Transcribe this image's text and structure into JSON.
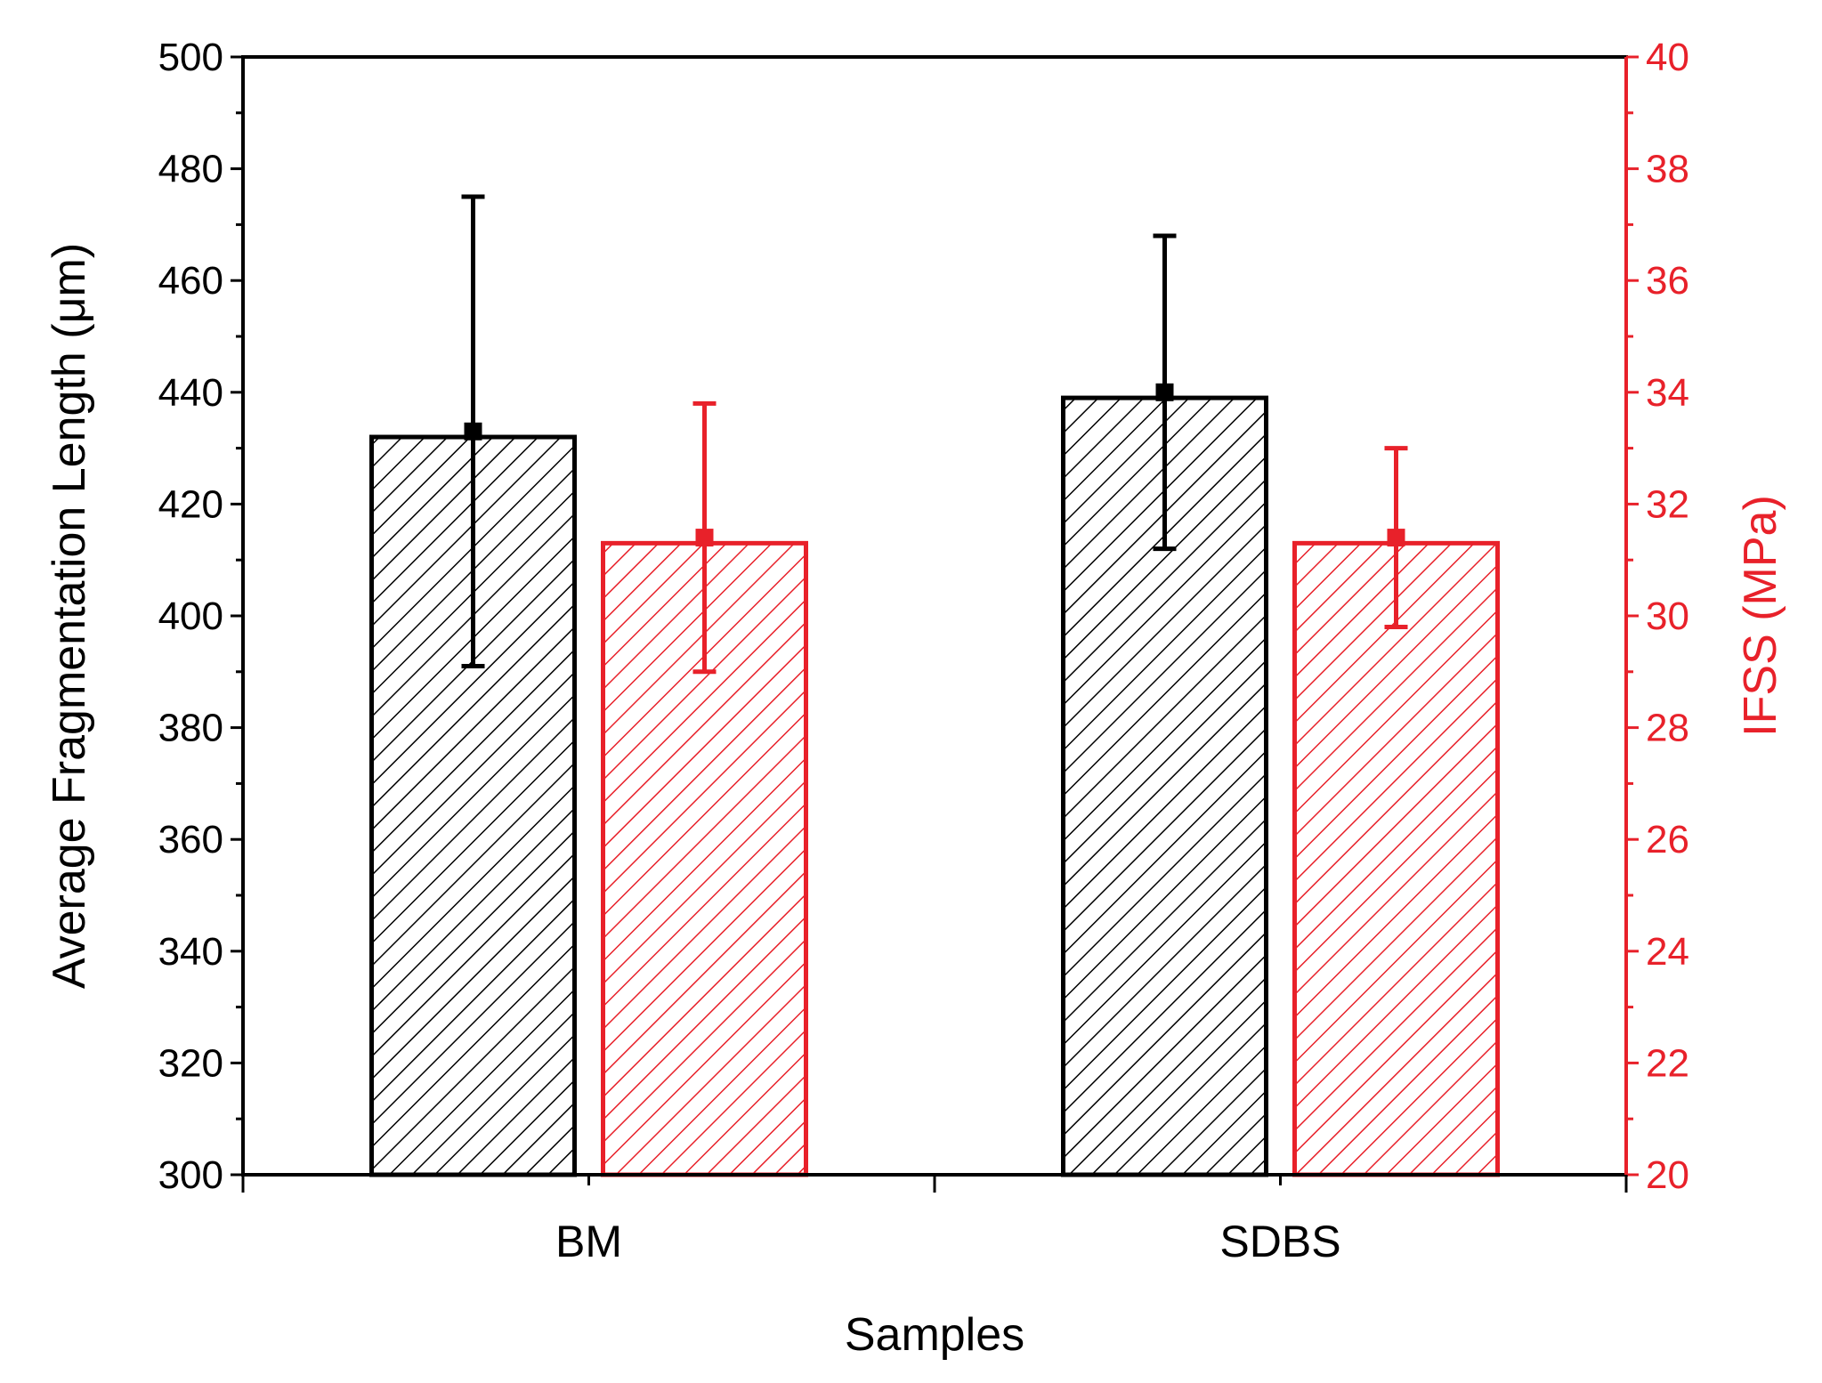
{
  "chart_data": {
    "type": "bar",
    "xlabel": "Samples",
    "categories": [
      "BM",
      "SDBS"
    ],
    "left_axis": {
      "label": "Average Fragmentation Length (μm)",
      "ylim": [
        300,
        500
      ],
      "ticks": [
        "300",
        "320",
        "340",
        "360",
        "380",
        "400",
        "420",
        "440",
        "460",
        "480",
        "500"
      ],
      "color": "#000000"
    },
    "right_axis": {
      "label": "IFSS (MPa)",
      "ylim": [
        20,
        40
      ],
      "ticks": [
        "20",
        "22",
        "24",
        "26",
        "28",
        "30",
        "32",
        "34",
        "36",
        "38",
        "40"
      ],
      "color": "#e8212a"
    },
    "series": [
      {
        "name": "Average Fragmentation Length",
        "axis": "left",
        "color": "#000000",
        "hatch": "diagonal",
        "values": [
          432,
          439
        ],
        "error_center": [
          433,
          440
        ],
        "error": [
          42,
          28
        ]
      },
      {
        "name": "IFSS",
        "axis": "right",
        "color": "#e8212a",
        "hatch": "diagonal",
        "values": [
          31.3,
          31.3
        ],
        "error_center": [
          31.4,
          31.4
        ],
        "error": [
          2.4,
          1.6
        ]
      }
    ]
  }
}
